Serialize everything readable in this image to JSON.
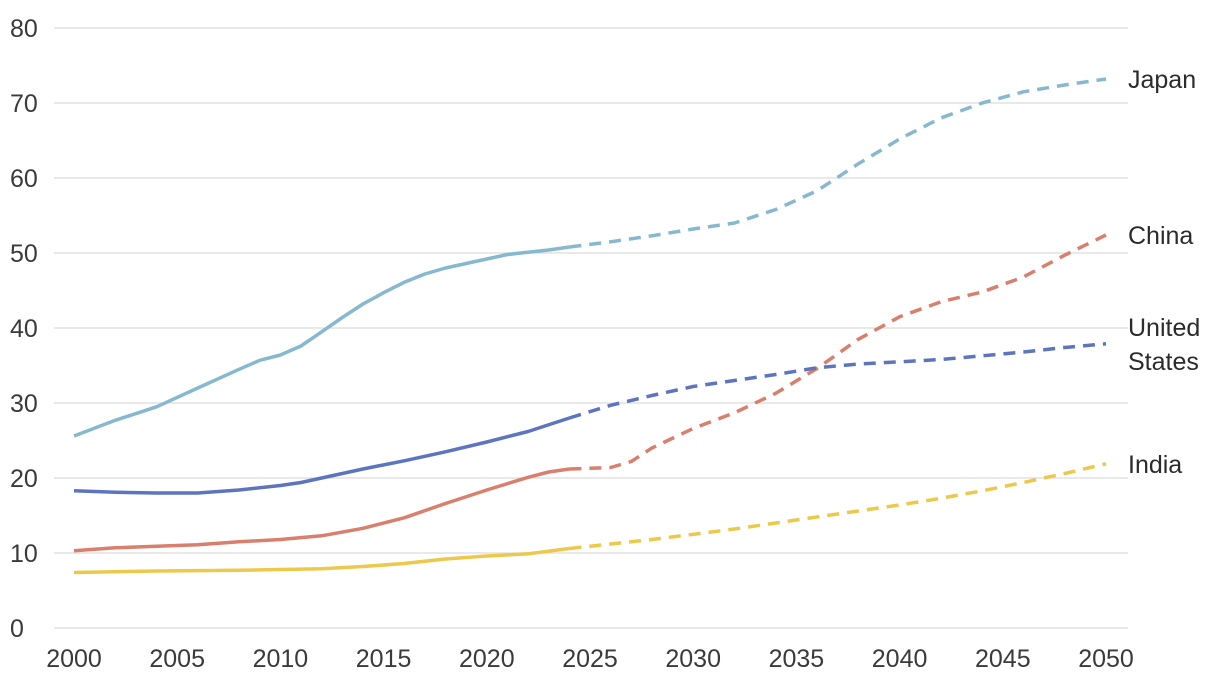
{
  "chart_data": {
    "type": "line",
    "title": "",
    "xlabel": "",
    "ylabel": "",
    "xlim": [
      2000,
      2050
    ],
    "ylim": [
      0,
      80
    ],
    "projection_start": 2024,
    "grid": true,
    "x_ticks": [
      2000,
      2005,
      2010,
      2015,
      2020,
      2025,
      2030,
      2035,
      2040,
      2045,
      2050
    ],
    "y_ticks": [
      0,
      10,
      20,
      30,
      40,
      50,
      60,
      70,
      80
    ],
    "series": [
      {
        "name": "Japan",
        "label_lines": [
          "Japan"
        ],
        "color": "#86b9cf",
        "points": [
          [
            2000,
            25.6
          ],
          [
            2002,
            27.7
          ],
          [
            2004,
            29.5
          ],
          [
            2006,
            32.0
          ],
          [
            2008,
            34.5
          ],
          [
            2009,
            35.7
          ],
          [
            2010,
            36.4
          ],
          [
            2011,
            37.6
          ],
          [
            2012,
            39.5
          ],
          [
            2013,
            41.4
          ],
          [
            2014,
            43.2
          ],
          [
            2015,
            44.7
          ],
          [
            2016,
            46.1
          ],
          [
            2017,
            47.2
          ],
          [
            2018,
            48.0
          ],
          [
            2019,
            48.6
          ],
          [
            2020,
            49.2
          ],
          [
            2021,
            49.8
          ],
          [
            2022,
            50.1
          ],
          [
            2023,
            50.4
          ],
          [
            2024,
            50.8
          ],
          [
            2026,
            51.5
          ],
          [
            2028,
            52.3
          ],
          [
            2030,
            53.2
          ],
          [
            2032,
            54.0
          ],
          [
            2034,
            55.8
          ],
          [
            2036,
            58.3
          ],
          [
            2038,
            61.9
          ],
          [
            2040,
            65.2
          ],
          [
            2042,
            68.0
          ],
          [
            2044,
            70.0
          ],
          [
            2046,
            71.5
          ],
          [
            2048,
            72.4
          ],
          [
            2050,
            73.2
          ]
        ]
      },
      {
        "name": "China",
        "label_lines": [
          "China"
        ],
        "color": "#d97f6e",
        "points": [
          [
            2000,
            10.3
          ],
          [
            2002,
            10.7
          ],
          [
            2004,
            10.9
          ],
          [
            2006,
            11.1
          ],
          [
            2008,
            11.5
          ],
          [
            2010,
            11.8
          ],
          [
            2012,
            12.3
          ],
          [
            2014,
            13.3
          ],
          [
            2016,
            14.7
          ],
          [
            2018,
            16.6
          ],
          [
            2020,
            18.4
          ],
          [
            2022,
            20.1
          ],
          [
            2023,
            20.8
          ],
          [
            2024,
            21.2
          ],
          [
            2025,
            21.3
          ],
          [
            2026,
            21.4
          ],
          [
            2027,
            22.2
          ],
          [
            2028,
            24.0
          ],
          [
            2030,
            26.6
          ],
          [
            2032,
            28.7
          ],
          [
            2034,
            31.3
          ],
          [
            2036,
            34.6
          ],
          [
            2038,
            38.5
          ],
          [
            2040,
            41.5
          ],
          [
            2042,
            43.5
          ],
          [
            2044,
            44.8
          ],
          [
            2046,
            46.8
          ],
          [
            2048,
            49.7
          ],
          [
            2050,
            52.4
          ]
        ]
      },
      {
        "name": "United States",
        "label_lines": [
          "United",
          "States"
        ],
        "color": "#5d74bf",
        "points": [
          [
            2000,
            18.3
          ],
          [
            2002,
            18.1
          ],
          [
            2004,
            18.0
          ],
          [
            2006,
            18.0
          ],
          [
            2008,
            18.4
          ],
          [
            2010,
            19.0
          ],
          [
            2011,
            19.4
          ],
          [
            2012,
            20.0
          ],
          [
            2014,
            21.2
          ],
          [
            2016,
            22.3
          ],
          [
            2018,
            23.5
          ],
          [
            2020,
            24.8
          ],
          [
            2022,
            26.2
          ],
          [
            2024,
            28.0
          ],
          [
            2026,
            29.7
          ],
          [
            2028,
            31.0
          ],
          [
            2030,
            32.2
          ],
          [
            2032,
            33.0
          ],
          [
            2034,
            33.8
          ],
          [
            2036,
            34.7
          ],
          [
            2038,
            35.2
          ],
          [
            2040,
            35.5
          ],
          [
            2042,
            35.8
          ],
          [
            2044,
            36.3
          ],
          [
            2046,
            36.8
          ],
          [
            2048,
            37.4
          ],
          [
            2050,
            37.9
          ]
        ]
      },
      {
        "name": "India",
        "label_lines": [
          "India"
        ],
        "color": "#ecc94b",
        "points": [
          [
            2000,
            7.4
          ],
          [
            2004,
            7.6
          ],
          [
            2008,
            7.7
          ],
          [
            2012,
            7.9
          ],
          [
            2014,
            8.2
          ],
          [
            2016,
            8.6
          ],
          [
            2018,
            9.2
          ],
          [
            2020,
            9.6
          ],
          [
            2022,
            9.9
          ],
          [
            2024,
            10.6
          ],
          [
            2026,
            11.2
          ],
          [
            2028,
            11.8
          ],
          [
            2030,
            12.5
          ],
          [
            2032,
            13.2
          ],
          [
            2034,
            14.0
          ],
          [
            2036,
            14.8
          ],
          [
            2038,
            15.6
          ],
          [
            2040,
            16.4
          ],
          [
            2042,
            17.3
          ],
          [
            2044,
            18.3
          ],
          [
            2046,
            19.4
          ],
          [
            2048,
            20.6
          ],
          [
            2050,
            21.9
          ]
        ]
      }
    ]
  }
}
